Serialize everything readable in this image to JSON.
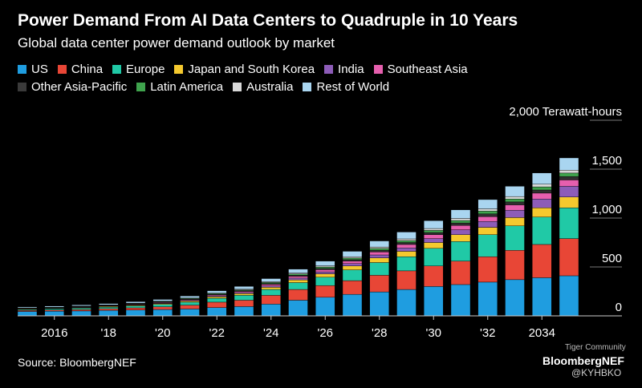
{
  "chart_data": {
    "type": "bar",
    "stacked": true,
    "title": "Power Demand From AI Data Centers to Quadruple in 10 Years",
    "subtitle": "Global data center power demand outlook by market",
    "unit_label": "2,000 Terawatt-hours",
    "source": "Source: BloombergNEF",
    "ylim": [
      0,
      2000
    ],
    "ytick_labels": [
      "0",
      "500",
      "1,000",
      "1,500"
    ],
    "ytick_values": [
      0,
      500,
      1000,
      1500
    ],
    "x_tick_labels": [
      "2016",
      "'18",
      "'20",
      "'22",
      "'24",
      "'26",
      "'28",
      "'30",
      "'32",
      "2034"
    ],
    "categories": [
      "2015",
      "2016",
      "2017",
      "2018",
      "2019",
      "2020",
      "2021",
      "2022",
      "2023",
      "2024",
      "2025",
      "2026",
      "2027",
      "2028",
      "2029",
      "2030",
      "2031",
      "2032",
      "2033",
      "2034",
      "2035"
    ],
    "series": [
      {
        "name": "US",
        "color": "#1f9de0",
        "values": [
          45,
          48,
          50,
          55,
          60,
          65,
          70,
          85,
          95,
          120,
          160,
          190,
          220,
          245,
          270,
          300,
          320,
          345,
          370,
          390,
          410
        ]
      },
      {
        "name": "China",
        "color": "#e84636",
        "values": [
          10,
          12,
          15,
          18,
          22,
          28,
          40,
          55,
          65,
          90,
          110,
          120,
          140,
          170,
          190,
          210,
          240,
          260,
          300,
          340,
          380
        ]
      },
      {
        "name": "Europe",
        "color": "#20c9a6",
        "values": [
          10,
          12,
          14,
          16,
          20,
          24,
          30,
          40,
          50,
          60,
          70,
          85,
          110,
          130,
          145,
          180,
          200,
          225,
          250,
          280,
          315
        ]
      },
      {
        "name": "Japan and South Korea",
        "color": "#f5c92e",
        "values": [
          5,
          5,
          6,
          7,
          8,
          9,
          12,
          15,
          18,
          22,
          28,
          35,
          40,
          48,
          55,
          60,
          70,
          75,
          85,
          95,
          110
        ]
      },
      {
        "name": "India",
        "color": "#8d5cb8",
        "values": [
          2,
          2,
          3,
          3,
          4,
          5,
          6,
          8,
          10,
          14,
          18,
          20,
          25,
          30,
          35,
          40,
          50,
          60,
          75,
          90,
          110
        ]
      },
      {
        "name": "Southeast Asia",
        "color": "#e65fae",
        "values": [
          3,
          3,
          4,
          4,
          5,
          6,
          8,
          10,
          12,
          15,
          18,
          22,
          25,
          30,
          35,
          40,
          45,
          50,
          55,
          60,
          65
        ]
      },
      {
        "name": "Other Asia-Pacific",
        "color": "#2f2f2f",
        "values": [
          3,
          3,
          3,
          4,
          4,
          5,
          6,
          7,
          8,
          10,
          12,
          14,
          15,
          18,
          20,
          22,
          25,
          28,
          30,
          32,
          35
        ]
      },
      {
        "name": "Latin America",
        "color": "#3fa34d",
        "values": [
          2,
          2,
          3,
          3,
          4,
          5,
          6,
          7,
          8,
          10,
          12,
          14,
          16,
          18,
          20,
          22,
          25,
          28,
          30,
          32,
          35
        ]
      },
      {
        "name": "Australia",
        "color": "#d8d8d8",
        "values": [
          2,
          2,
          2,
          3,
          3,
          4,
          5,
          6,
          7,
          8,
          10,
          12,
          14,
          15,
          17,
          19,
          21,
          23,
          25,
          27,
          30
        ]
      },
      {
        "name": "Rest of World",
        "color": "#a9d5f0",
        "values": [
          10,
          11,
          12,
          13,
          15,
          17,
          20,
          24,
          28,
          32,
          40,
          48,
          55,
          62,
          70,
          80,
          88,
          95,
          105,
          115,
          125
        ]
      }
    ]
  },
  "footer": {
    "brand": "BloombergNEF",
    "community": "Tiger Community",
    "handle": "@KYHBKO"
  }
}
